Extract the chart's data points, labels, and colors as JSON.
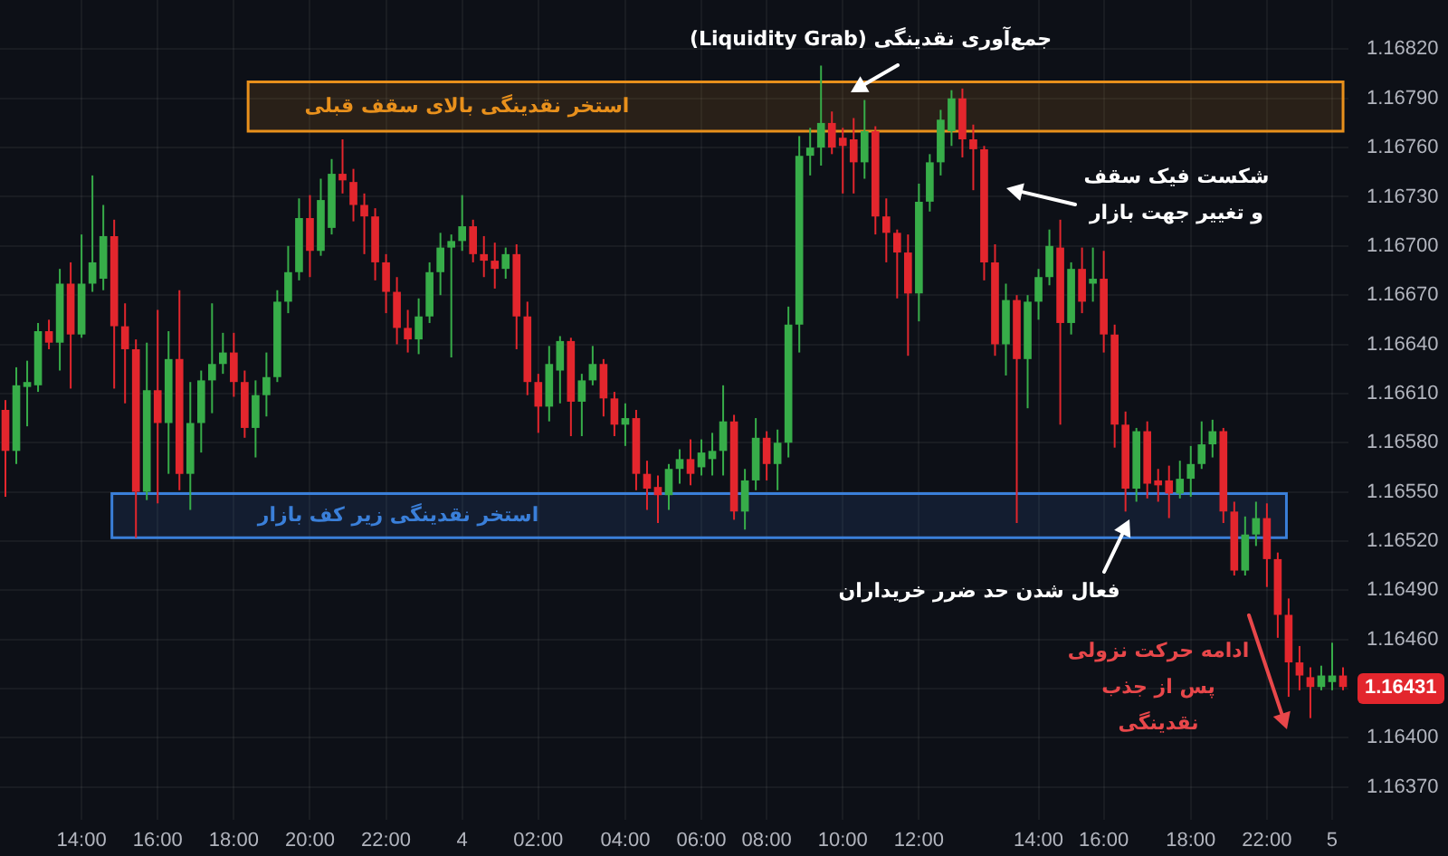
{
  "chart_data": {
    "type": "candlestick",
    "categories": [
      null,
      null,
      null,
      null,
      null,
      null,
      null,
      "14:00",
      null,
      null,
      null,
      null,
      null,
      null,
      "16:00",
      null,
      null,
      null,
      null,
      null,
      null,
      "18:00",
      null,
      null,
      null,
      null,
      null,
      null,
      "20:00",
      null,
      null,
      null,
      null,
      null,
      null,
      "22:00",
      null,
      null,
      null,
      null,
      null,
      null,
      "4",
      null,
      null,
      null,
      null,
      null,
      null,
      "02:00",
      null,
      null,
      null,
      null,
      null,
      null,
      null,
      "04:00",
      null,
      null,
      null,
      null,
      null,
      null,
      "06:00",
      null,
      null,
      null,
      null,
      null,
      "08:00",
      null,
      null,
      null,
      null,
      null,
      null,
      "10:00",
      null,
      null,
      null,
      null,
      null,
      null,
      "12:00",
      null,
      null,
      null,
      null,
      null,
      null,
      null,
      null,
      null,
      null,
      "14:00",
      null,
      null,
      null,
      null,
      null,
      "16:00",
      null,
      null,
      null,
      null,
      null,
      null,
      null,
      "18:00",
      null,
      null,
      null,
      null,
      null,
      null,
      "22:00",
      null,
      null,
      null,
      null,
      null,
      "5",
      null
    ],
    "ohlc": [
      [
        1.166,
        1.16606,
        1.16547,
        1.16575
      ],
      [
        1.16575,
        1.16626,
        1.16567,
        1.16615
      ],
      [
        1.16614,
        1.1663,
        1.1659,
        1.16617
      ],
      [
        1.16615,
        1.16653,
        1.16611,
        1.16648
      ],
      [
        1.16648,
        1.16655,
        1.16637,
        1.16641
      ],
      [
        1.16641,
        1.16686,
        1.16624,
        1.16677
      ],
      [
        1.16677,
        1.1669,
        1.16613,
        1.16646
      ],
      [
        1.16646,
        1.16707,
        1.16644,
        1.16677
      ],
      [
        1.16677,
        1.16743,
        1.16672,
        1.1669
      ],
      [
        1.1668,
        1.16725,
        1.16673,
        1.16706
      ],
      [
        1.16706,
        1.16716,
        1.16613,
        1.16651
      ],
      [
        1.16651,
        1.16665,
        1.16604,
        1.16637
      ],
      [
        1.16637,
        1.16643,
        1.16522,
        1.1655
      ],
      [
        1.1655,
        1.16641,
        1.16545,
        1.16612
      ],
      [
        1.16612,
        1.16661,
        1.16543,
        1.16592
      ],
      [
        1.16592,
        1.16648,
        1.16561,
        1.16631
      ],
      [
        1.16631,
        1.16673,
        1.16551,
        1.16561
      ],
      [
        1.16561,
        1.16617,
        1.16539,
        1.16592
      ],
      [
        1.16592,
        1.16624,
        1.16574,
        1.16618
      ],
      [
        1.16618,
        1.16665,
        1.16598,
        1.16628
      ],
      [
        1.16628,
        1.16647,
        1.16622,
        1.16635
      ],
      [
        1.16635,
        1.16647,
        1.16608,
        1.16617
      ],
      [
        1.16617,
        1.16624,
        1.16583,
        1.16589
      ],
      [
        1.16589,
        1.16618,
        1.16571,
        1.16609
      ],
      [
        1.16609,
        1.16635,
        1.16596,
        1.1662
      ],
      [
        1.1662,
        1.16673,
        1.16617,
        1.16666
      ],
      [
        1.16666,
        1.167,
        1.16659,
        1.16684
      ],
      [
        1.16684,
        1.16729,
        1.16679,
        1.16717
      ],
      [
        1.16717,
        1.16731,
        1.16681,
        1.16697
      ],
      [
        1.16697,
        1.16741,
        1.16694,
        1.16728
      ],
      [
        1.16711,
        1.16753,
        1.16707,
        1.16744
      ],
      [
        1.16744,
        1.16765,
        1.16732,
        1.1674
      ],
      [
        1.16739,
        1.16747,
        1.16715,
        1.16725
      ],
      [
        1.16725,
        1.16732,
        1.16695,
        1.16718
      ],
      [
        1.16718,
        1.16723,
        1.16679,
        1.1669
      ],
      [
        1.1669,
        1.16695,
        1.16659,
        1.16672
      ],
      [
        1.16672,
        1.16681,
        1.1664,
        1.1665
      ],
      [
        1.1665,
        1.16661,
        1.16635,
        1.16643
      ],
      [
        1.16643,
        1.16668,
        1.16634,
        1.16657
      ],
      [
        1.16657,
        1.1669,
        1.16653,
        1.16684
      ],
      [
        1.16684,
        1.16708,
        1.1667,
        1.16699
      ],
      [
        1.16699,
        1.16707,
        1.16632,
        1.16703
      ],
      [
        1.16703,
        1.16731,
        1.16697,
        1.16712
      ],
      [
        1.16712,
        1.16716,
        1.1669,
        1.16695
      ],
      [
        1.16695,
        1.16706,
        1.16681,
        1.16691
      ],
      [
        1.16691,
        1.16702,
        1.16674,
        1.16686
      ],
      [
        1.16686,
        1.16699,
        1.1668,
        1.16695
      ],
      [
        1.16695,
        1.16701,
        1.16637,
        1.16657
      ],
      [
        1.16657,
        1.16666,
        1.16609,
        1.16617
      ],
      [
        1.16617,
        1.16622,
        1.16586,
        1.16602
      ],
      [
        1.16602,
        1.16639,
        1.16593,
        1.16628
      ],
      [
        1.16624,
        1.16645,
        1.16604,
        1.16642
      ],
      [
        1.16642,
        1.16644,
        1.16584,
        1.16605
      ],
      [
        1.16605,
        1.16622,
        1.16584,
        1.16618
      ],
      [
        1.16618,
        1.16639,
        1.16615,
        1.16628
      ],
      [
        1.16628,
        1.16631,
        1.16596,
        1.16607
      ],
      [
        1.16607,
        1.16611,
        1.16584,
        1.16591
      ],
      [
        1.16591,
        1.16604,
        1.16578,
        1.16595
      ],
      [
        1.16595,
        1.166,
        1.16551,
        1.16561
      ],
      [
        1.16561,
        1.16569,
        1.16539,
        1.16552
      ],
      [
        1.16553,
        1.1656,
        1.16531,
        1.16548
      ],
      [
        1.16548,
        1.16567,
        1.16539,
        1.16564
      ],
      [
        1.16564,
        1.16576,
        1.16555,
        1.1657
      ],
      [
        1.1657,
        1.16582,
        1.16554,
        1.16561
      ],
      [
        1.16565,
        1.16582,
        1.1656,
        1.16574
      ],
      [
        1.1657,
        1.16586,
        1.1656,
        1.16575
      ],
      [
        1.16575,
        1.16615,
        1.1656,
        1.16593
      ],
      [
        1.16593,
        1.16597,
        1.16533,
        1.16538
      ],
      [
        1.16538,
        1.16564,
        1.16527,
        1.16557
      ],
      [
        1.16557,
        1.16595,
        1.16551,
        1.16583
      ],
      [
        1.16583,
        1.16587,
        1.16557,
        1.16567
      ],
      [
        1.16567,
        1.16588,
        1.16551,
        1.1658
      ],
      [
        1.1658,
        1.16663,
        1.16571,
        1.16652
      ],
      [
        1.16652,
        1.16767,
        1.16635,
        1.16755
      ],
      [
        1.16755,
        1.16772,
        1.16743,
        1.1676
      ],
      [
        1.1676,
        1.1681,
        1.16749,
        1.16775
      ],
      [
        1.16775,
        1.16782,
        1.16756,
        1.1676
      ],
      [
        1.16766,
        1.16772,
        1.16732,
        1.16761
      ],
      [
        1.16765,
        1.16778,
        1.16732,
        1.16751
      ],
      [
        1.16751,
        1.16789,
        1.16741,
        1.1677
      ],
      [
        1.1677,
        1.16773,
        1.16707,
        1.16718
      ],
      [
        1.16718,
        1.16729,
        1.1669,
        1.16708
      ],
      [
        1.16708,
        1.1671,
        1.16668,
        1.16696
      ],
      [
        1.16696,
        1.16707,
        1.16633,
        1.16671
      ],
      [
        1.16671,
        1.16738,
        1.16654,
        1.16727
      ],
      [
        1.16727,
        1.16756,
        1.16721,
        1.16751
      ],
      [
        1.16751,
        1.16783,
        1.16743,
        1.16777
      ],
      [
        1.1677,
        1.16795,
        1.16761,
        1.1679
      ],
      [
        1.1679,
        1.16796,
        1.16754,
        1.16765
      ],
      [
        1.16765,
        1.16774,
        1.16734,
        1.16759
      ],
      [
        1.16759,
        1.16761,
        1.16679,
        1.1669
      ],
      [
        1.1669,
        1.16701,
        1.16633,
        1.1664
      ],
      [
        1.1664,
        1.16677,
        1.16621,
        1.16667
      ],
      [
        1.16667,
        1.1667,
        1.16531,
        1.16631
      ],
      [
        1.16631,
        1.1667,
        1.16601,
        1.16666
      ],
      [
        1.16666,
        1.16686,
        1.16655,
        1.16681
      ],
      [
        1.16681,
        1.1671,
        1.16676,
        1.167
      ],
      [
        1.16699,
        1.16716,
        1.16591,
        1.16653
      ],
      [
        1.16653,
        1.1669,
        1.16646,
        1.16686
      ],
      [
        1.16686,
        1.16699,
        1.16659,
        1.16666
      ],
      [
        1.16677,
        1.16699,
        1.16666,
        1.1668
      ],
      [
        1.1668,
        1.16697,
        1.16635,
        1.16646
      ],
      [
        1.16646,
        1.16652,
        1.16577,
        1.16591
      ],
      [
        1.16591,
        1.16599,
        1.16538,
        1.16552
      ],
      [
        1.16552,
        1.16589,
        1.16544,
        1.16587
      ],
      [
        1.16587,
        1.16593,
        1.16546,
        1.16555
      ],
      [
        1.16557,
        1.16564,
        1.16544,
        1.16554
      ],
      [
        1.16557,
        1.16566,
        1.16534,
        1.16549
      ],
      [
        1.16549,
        1.16569,
        1.16546,
        1.16558
      ],
      [
        1.16558,
        1.16578,
        1.16547,
        1.16567
      ],
      [
        1.16567,
        1.16593,
        1.16564,
        1.16579
      ],
      [
        1.16579,
        1.16594,
        1.16571,
        1.16587
      ],
      [
        1.16587,
        1.16589,
        1.16531,
        1.16538
      ],
      [
        1.16538,
        1.16544,
        1.16499,
        1.16502
      ],
      [
        1.16502,
        1.16535,
        1.16499,
        1.16524
      ],
      [
        1.16524,
        1.16544,
        1.16517,
        1.16534
      ],
      [
        1.16534,
        1.16543,
        1.16492,
        1.16509
      ],
      [
        1.16509,
        1.16513,
        1.16461,
        1.16475
      ],
      [
        1.16475,
        1.16485,
        1.16425,
        1.16446
      ],
      [
        1.16446,
        1.16456,
        1.16429,
        1.16438
      ],
      [
        1.16437,
        1.16443,
        1.16412,
        1.16431
      ],
      [
        1.16431,
        1.16444,
        1.16429,
        1.16438
      ],
      [
        1.16434,
        1.16458,
        1.16429,
        1.16438
      ],
      [
        1.16438,
        1.16443,
        1.16429,
        1.16431
      ]
    ],
    "colors": [
      "#e3262d",
      "#37ad49",
      "#37ad49",
      "#37ad49",
      "#e3262d",
      "#37ad49",
      "#e3262d",
      "#37ad49",
      "#37ad49",
      "#37ad49",
      "#e3262d",
      "#e3262d",
      "#e3262d",
      "#37ad49",
      "#e3262d",
      "#37ad49",
      "#e3262d",
      "#37ad49",
      "#37ad49",
      "#37ad49",
      "#37ad49",
      "#e3262d",
      "#e3262d",
      "#37ad49",
      "#37ad49",
      "#37ad49",
      "#37ad49",
      "#37ad49",
      "#e3262d",
      "#37ad49",
      "#37ad49",
      "#e3262d",
      "#e3262d",
      "#e3262d",
      "#e3262d",
      "#e3262d",
      "#e3262d",
      "#e3262d",
      "#37ad49",
      "#37ad49",
      "#37ad49",
      "#37ad49",
      "#37ad49",
      "#e3262d",
      "#e3262d",
      "#e3262d",
      "#37ad49",
      "#e3262d",
      "#e3262d",
      "#e3262d",
      "#37ad49",
      "#37ad49",
      "#e3262d",
      "#37ad49",
      "#37ad49",
      "#e3262d",
      "#e3262d",
      "#37ad49",
      "#e3262d",
      "#e3262d",
      "#e3262d",
      "#37ad49",
      "#37ad49",
      "#e3262d",
      "#37ad49",
      "#37ad49",
      "#37ad49",
      "#e3262d",
      "#37ad49",
      "#37ad49",
      "#e3262d",
      "#37ad49",
      "#37ad49",
      "#37ad49",
      "#37ad49",
      "#37ad49",
      "#e3262d",
      "#e3262d",
      "#e3262d",
      "#37ad49",
      "#e3262d",
      "#e3262d",
      "#e3262d",
      "#e3262d",
      "#37ad49",
      "#37ad49",
      "#37ad49",
      "#37ad49",
      "#e3262d",
      "#e3262d",
      "#e3262d",
      "#e3262d",
      "#37ad49",
      "#e3262d",
      "#37ad49",
      "#37ad49",
      "#37ad49",
      "#e3262d",
      "#37ad49",
      "#e3262d",
      "#37ad49",
      "#e3262d",
      "#e3262d",
      "#e3262d",
      "#37ad49",
      "#e3262d",
      "#e3262d",
      "#e3262d",
      "#37ad49",
      "#37ad49",
      "#37ad49",
      "#37ad49",
      "#e3262d",
      "#e3262d",
      "#37ad49",
      "#37ad49",
      "#e3262d",
      "#e3262d",
      "#e3262d",
      "#e3262d",
      "#e3262d",
      "#37ad49",
      "#37ad49",
      "#e3262d"
    ],
    "ylim": [
      1.1635,
      1.1685
    ],
    "yticks": [
      {
        "value": 1.1637,
        "label": "1.16370"
      },
      {
        "value": 1.164,
        "label": "1.16400"
      },
      {
        "value": 1.1643,
        "label": null
      },
      {
        "value": 1.1646,
        "label": "1.16460"
      },
      {
        "value": 1.1649,
        "label": "1.16490"
      },
      {
        "value": 1.1652,
        "label": "1.16520"
      },
      {
        "value": 1.1655,
        "label": "1.16550"
      },
      {
        "value": 1.1658,
        "label": "1.16580"
      },
      {
        "value": 1.1661,
        "label": "1.16610"
      },
      {
        "value": 1.1664,
        "label": "1.16640"
      },
      {
        "value": 1.1667,
        "label": "1.16670"
      },
      {
        "value": 1.167,
        "label": "1.16700"
      },
      {
        "value": 1.1673,
        "label": "1.16730"
      },
      {
        "value": 1.1676,
        "label": "1.16760"
      },
      {
        "value": 1.1679,
        "label": "1.16790"
      },
      {
        "value": 1.1682,
        "label": "1.16820"
      }
    ],
    "grid": true,
    "bands": [
      {
        "axis": "y",
        "from": 1.1677,
        "to": 1.168,
        "label": "استخر نقدینگی بالای سقف قبلی",
        "color": "#e8901c"
      },
      {
        "axis": "y",
        "from": 1.16522,
        "to": 1.16549,
        "label": "استخر نقدینگی زیر کف بازار",
        "color": "#3a7fd9"
      }
    ],
    "annotations": [
      "جمع‌آوری نقدینگی (Liquidity Grab)",
      "شکست فیک سقف\nو تغییر جهت بازار",
      "فعال شدن حد ضرر خریداران",
      "ادامه حرکت نزولی\nپس از جذب\nنقدینگی",
      "1.16431"
    ]
  }
}
